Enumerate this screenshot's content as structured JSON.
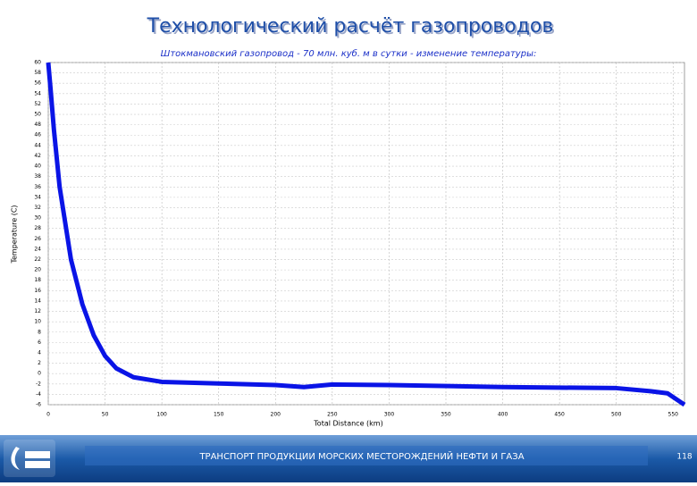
{
  "header": {
    "title": "Технологический расчёт газопроводов"
  },
  "chart_data": {
    "type": "line",
    "title": "Штокмановский газопровод - 70 млн. куб. м в сутки - изменение температуры:",
    "x_label": "Total Distance (km)",
    "y_label": "Temperature (C)",
    "x": [
      0,
      2,
      5,
      10,
      20,
      30,
      40,
      50,
      60,
      75,
      100,
      150,
      200,
      225,
      250,
      300,
      400,
      500,
      530,
      545,
      560
    ],
    "series": [
      {
        "name": "Temperature",
        "color": "#0a14e6",
        "values": [
          60,
          55,
          47,
          36,
          22,
          13.4,
          7.4,
          3.4,
          1,
          -0.7,
          -1.6,
          -1.9,
          -2.2,
          -2.6,
          -2.1,
          -2.2,
          -2.6,
          -2.8,
          -3.4,
          -3.8,
          -6
        ]
      }
    ],
    "xlim": [
      0,
      560
    ],
    "ylim": [
      -6,
      60
    ],
    "xticks": [
      0,
      50,
      100,
      150,
      200,
      250,
      300,
      350,
      400,
      450,
      500,
      550
    ],
    "yticks": [
      60,
      58,
      56,
      54,
      52,
      50,
      48,
      46,
      44,
      42,
      40,
      38,
      36,
      34,
      32,
      30,
      28,
      26,
      24,
      22,
      20,
      18,
      16,
      14,
      12,
      10,
      8,
      6,
      4,
      2,
      0,
      -2,
      -4,
      -6
    ],
    "grid": true
  },
  "footer": {
    "text": "ТРАНСПОРТ ПРОДУКЦИИ МОРСКИХ МЕСТОРОЖДЕНИЙ НЕФТИ И ГАЗА",
    "page": "118"
  }
}
